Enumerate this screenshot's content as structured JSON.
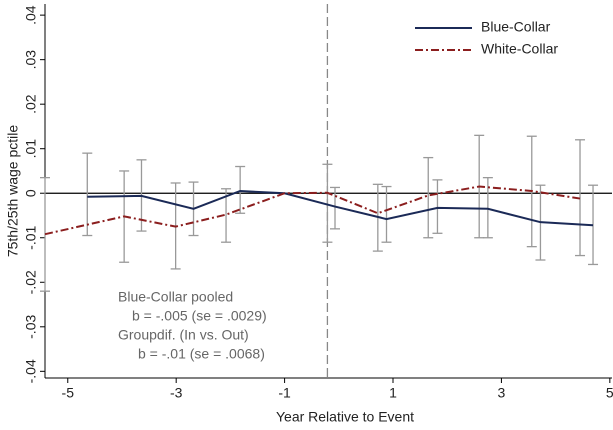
{
  "chart_data": {
    "type": "line",
    "x_label": "Year Relative to Event",
    "y_label": "75th/25th wage pctile",
    "xlim": [
      -5.42,
      5.04
    ],
    "ylim": [
      -0.0415,
      0.0425
    ],
    "xticks": [
      -5,
      -3,
      -1,
      1,
      3,
      5
    ],
    "yticks": [
      {
        "value": 0.04,
        "label": ".04"
      },
      {
        "value": 0.03,
        "label": ".03"
      },
      {
        "value": 0.02,
        "label": ".02"
      },
      {
        "value": 0.01,
        "label": ".01"
      },
      0,
      {
        "value": -0.01,
        "label": "-.01"
      },
      {
        "value": -0.02,
        "label": "-.02"
      },
      {
        "value": -0.03,
        "label": "-.03"
      },
      {
        "value": -0.04,
        "label": "-.04"
      }
    ],
    "reference_line_y": 0,
    "event_line_x": -0.21,
    "legend": "top-right",
    "series": [
      {
        "name": "Blue-Collar",
        "color": "#1b2a57",
        "style": "solid",
        "x": [
          -4.64,
          -3.64,
          -2.68,
          -1.82,
          -1,
          -0.07,
          0.88,
          1.82,
          2.75,
          3.72,
          4.69
        ],
        "values": [
          -0.0008,
          -0.0006,
          -0.0035,
          0.0005,
          0,
          -0.003,
          -0.0058,
          -0.0033,
          -0.0035,
          -0.0065,
          -0.0072
        ],
        "lower": [
          -0.0095,
          -0.0085,
          -0.0095,
          -0.0045,
          null,
          -0.008,
          -0.011,
          -0.009,
          -0.01,
          -0.015,
          -0.016
        ],
        "upper": [
          0.009,
          0.0075,
          0.0025,
          0.006,
          null,
          0.0013,
          0.0015,
          0.003,
          0.0035,
          0.0018,
          0.0018
        ]
      },
      {
        "name": "White-Collar",
        "color": "#8b1e1e",
        "style": "dashdot",
        "x": [
          -5.42,
          -3.96,
          -3.01,
          -2.08,
          -1,
          -0.21,
          0.72,
          1.65,
          2.59,
          3.56,
          4.45
        ],
        "values": [
          -0.0092,
          -0.0052,
          -0.0075,
          -0.0048,
          0,
          0.0001,
          -0.0045,
          -0.0005,
          0.0015,
          0.0005,
          -0.0012
        ],
        "lower": [
          -0.022,
          -0.0155,
          -0.017,
          -0.011,
          null,
          -0.011,
          -0.013,
          -0.01,
          -0.01,
          -0.012,
          -0.014
        ],
        "upper": [
          0.0035,
          0.005,
          0.0023,
          0.001,
          null,
          0.0065,
          0.002,
          0.008,
          0.013,
          0.0128,
          0.012
        ]
      }
    ],
    "annotations": [
      "Blue-Collar pooled",
      "b = -.005 (se = .0029)",
      "Groupdif. (In vs. Out)",
      "b = -.01 (se = .0068)"
    ]
  }
}
